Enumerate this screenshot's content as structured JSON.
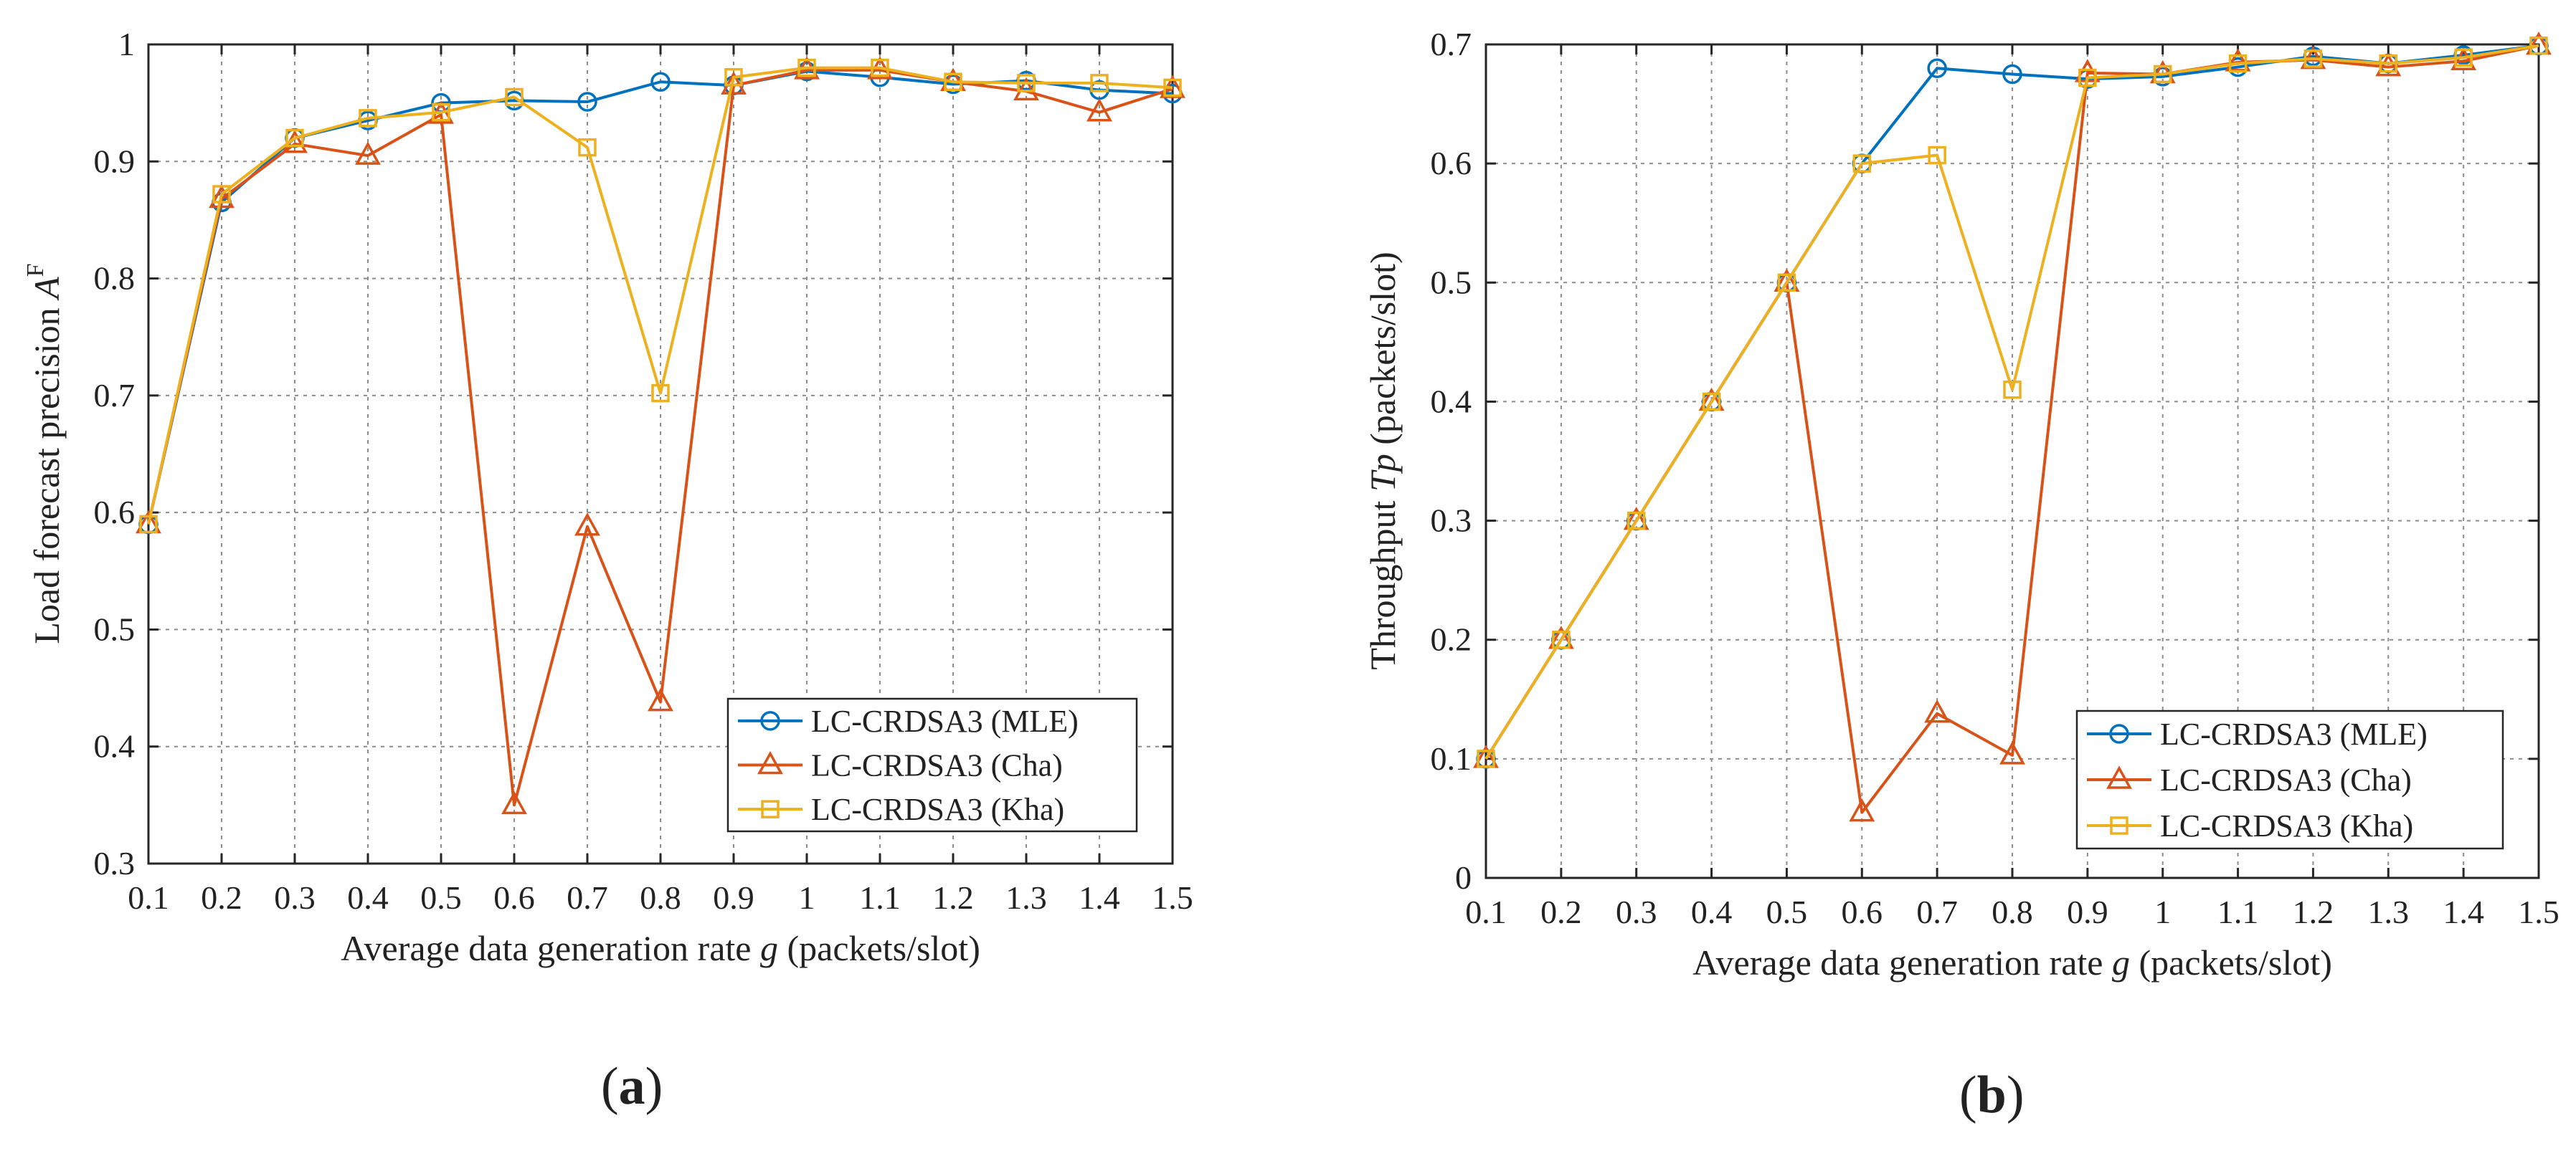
{
  "chart_data": [
    {
      "id": "a",
      "type": "line",
      "caption": "a",
      "xlabel": "Average data generation rate",
      "xlabel_var": "g",
      "xlabel_unit": "(packets/slot)",
      "ylabel": "Load forecast precision",
      "ylabel_var": "A",
      "ylabel_sup": "F",
      "xlim": [
        0.1,
        1.5
      ],
      "ylim": [
        0.3,
        1.0
      ],
      "grid": true,
      "legend_position": "bottom-right",
      "x": [
        0.1,
        0.2,
        0.3,
        0.4,
        0.5,
        0.6,
        0.7,
        0.8,
        0.9,
        1.0,
        1.1,
        1.2,
        1.3,
        1.4,
        1.5
      ],
      "xtick_labels": [
        "0.1",
        "0.2",
        "0.3",
        "0.4",
        "0.5",
        "0.6",
        "0.7",
        "0.8",
        "0.9",
        "1",
        "1.1",
        "1.2",
        "1.3",
        "1.4",
        "1.5"
      ],
      "yticks": [
        0.3,
        0.4,
        0.5,
        0.6,
        0.7,
        0.8,
        0.9,
        1.0
      ],
      "ytick_labels": [
        "0.3",
        "0.4",
        "0.5",
        "0.6",
        "0.7",
        "0.8",
        "0.9",
        "1"
      ],
      "series": [
        {
          "name": "LC-CRDSA3 (MLE)",
          "color": "#0072BD",
          "marker": "circle",
          "values": [
            0.59,
            0.865,
            0.92,
            0.935,
            0.95,
            0.952,
            0.951,
            0.968,
            0.965,
            0.977,
            0.972,
            0.966,
            0.969,
            0.961,
            0.958
          ]
        },
        {
          "name": "LC-CRDSA3 (Cha)",
          "color": "#D95319",
          "marker": "triangle",
          "values": [
            0.59,
            0.868,
            0.915,
            0.905,
            0.94,
            0.35,
            0.588,
            0.438,
            0.965,
            0.978,
            0.978,
            0.968,
            0.96,
            0.942,
            0.962
          ]
        },
        {
          "name": "LC-CRDSA3 (Kha)",
          "color": "#EDB120",
          "marker": "square",
          "values": [
            0.59,
            0.872,
            0.92,
            0.937,
            0.942,
            0.955,
            0.912,
            0.702,
            0.972,
            0.98,
            0.98,
            0.968,
            0.967,
            0.967,
            0.963
          ]
        }
      ]
    },
    {
      "id": "b",
      "type": "line",
      "caption": "b",
      "xlabel": "Average data generation rate",
      "xlabel_var": "g",
      "xlabel_unit": "(packets/slot)",
      "ylabel": "Throughput",
      "ylabel_var": "Tp",
      "ylabel_unit": "(packets/slot)",
      "xlim": [
        0.1,
        1.5
      ],
      "ylim": [
        0,
        0.7
      ],
      "grid": true,
      "legend_position": "bottom-right",
      "x": [
        0.1,
        0.2,
        0.3,
        0.4,
        0.5,
        0.6,
        0.7,
        0.8,
        0.9,
        1.0,
        1.1,
        1.2,
        1.3,
        1.4,
        1.5
      ],
      "xtick_labels": [
        "0.1",
        "0.2",
        "0.3",
        "0.4",
        "0.5",
        "0.6",
        "0.7",
        "0.8",
        "0.9",
        "1",
        "1.1",
        "1.2",
        "1.3",
        "1.4",
        "1.5"
      ],
      "yticks": [
        0,
        0.1,
        0.2,
        0.3,
        0.4,
        0.5,
        0.6,
        0.7
      ],
      "ytick_labels": [
        "0",
        "0.1",
        "0.2",
        "0.3",
        "0.4",
        "0.5",
        "0.6",
        "0.7"
      ],
      "series": [
        {
          "name": "LC-CRDSA3 (MLE)",
          "color": "#0072BD",
          "marker": "circle",
          "values": [
            0.1,
            0.2,
            0.3,
            0.4,
            0.5,
            0.6,
            0.68,
            0.675,
            0.671,
            0.673,
            0.681,
            0.69,
            0.684,
            0.691,
            0.699
          ]
        },
        {
          "name": "LC-CRDSA3 (Cha)",
          "color": "#D95319",
          "marker": "triangle",
          "values": [
            0.1,
            0.2,
            0.3,
            0.4,
            0.5,
            0.055,
            0.138,
            0.103,
            0.676,
            0.675,
            0.685,
            0.687,
            0.681,
            0.686,
            0.699
          ]
        },
        {
          "name": "LC-CRDSA3 (Kha)",
          "color": "#EDB120",
          "marker": "square",
          "values": [
            0.1,
            0.2,
            0.3,
            0.4,
            0.5,
            0.6,
            0.607,
            0.41,
            0.672,
            0.675,
            0.684,
            0.688,
            0.684,
            0.689,
            0.699
          ]
        }
      ]
    }
  ]
}
